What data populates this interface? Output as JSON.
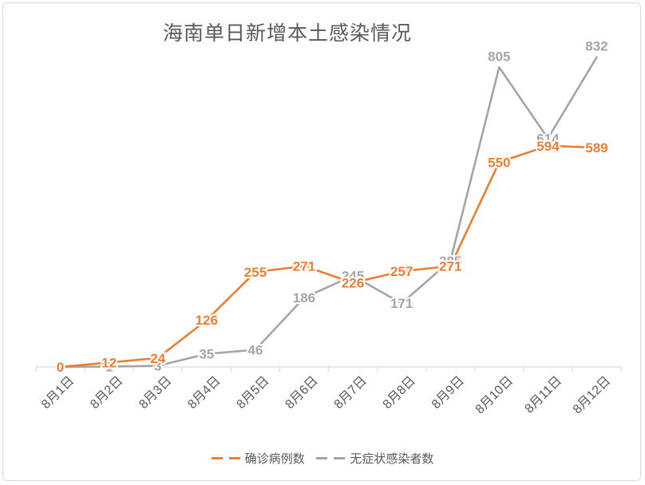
{
  "chart_data": {
    "type": "line",
    "title": "海南单日新增本土感染情况",
    "xlabel": "",
    "ylabel": "",
    "ylim": [
      0,
      900
    ],
    "grid": false,
    "legend_position": "bottom",
    "categories": [
      "8月1日",
      "8月2日",
      "8月3日",
      "8月4日",
      "8月5日",
      "8月6日",
      "8月7日",
      "8月8日",
      "8月9日",
      "8月10日",
      "8月11日",
      "8月12日"
    ],
    "series": [
      {
        "name": "确诊病例数",
        "color": "#ED7D31",
        "values": [
          0,
          12,
          24,
          126,
          255,
          271,
          226,
          257,
          271,
          550,
          594,
          589
        ]
      },
      {
        "name": "无症状感染者数",
        "color": "#A5A5A5",
        "values": [
          0,
          1,
          3,
          35,
          46,
          186,
          245,
          171,
          285,
          805,
          614,
          832
        ]
      }
    ]
  }
}
